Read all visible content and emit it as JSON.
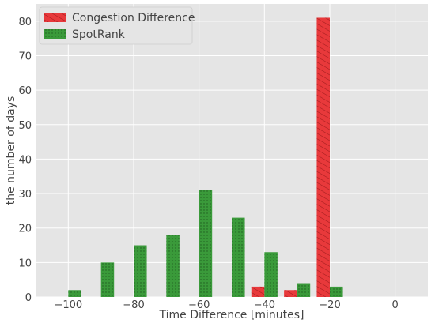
{
  "chart_data": {
    "type": "bar",
    "title": "",
    "xlabel": "Time Difference [minutes]",
    "ylabel": "the number of days",
    "xlim": [
      -110,
      10
    ],
    "ylim": [
      0,
      85
    ],
    "xticks": [
      -100,
      -80,
      -60,
      -40,
      -20,
      0
    ],
    "xtick_labels": [
      "−100",
      "−80",
      "−60",
      "−40",
      "−20",
      "0"
    ],
    "yticks": [
      0,
      10,
      20,
      30,
      40,
      50,
      60,
      70,
      80
    ],
    "ytick_labels": [
      "0",
      "10",
      "20",
      "30",
      "40",
      "50",
      "60",
      "70",
      "80"
    ],
    "grid": true,
    "legend_position": "top-left",
    "bin_width": 4,
    "series": [
      {
        "name": "Congestion Difference",
        "color": "#e8393b",
        "hatch": "diagonal",
        "points": [
          {
            "x": -42,
            "y": 3
          },
          {
            "x": -32,
            "y": 2
          },
          {
            "x": -22,
            "y": 81
          }
        ]
      },
      {
        "name": "SpotRank",
        "color": "#3a9a3a",
        "hatch": "dots",
        "points": [
          {
            "x": -98,
            "y": 2
          },
          {
            "x": -88,
            "y": 10
          },
          {
            "x": -78,
            "y": 15
          },
          {
            "x": -68,
            "y": 18
          },
          {
            "x": -58,
            "y": 31
          },
          {
            "x": -48,
            "y": 23
          },
          {
            "x": -38,
            "y": 13
          },
          {
            "x": -28,
            "y": 4
          },
          {
            "x": -18,
            "y": 3
          }
        ]
      }
    ]
  }
}
